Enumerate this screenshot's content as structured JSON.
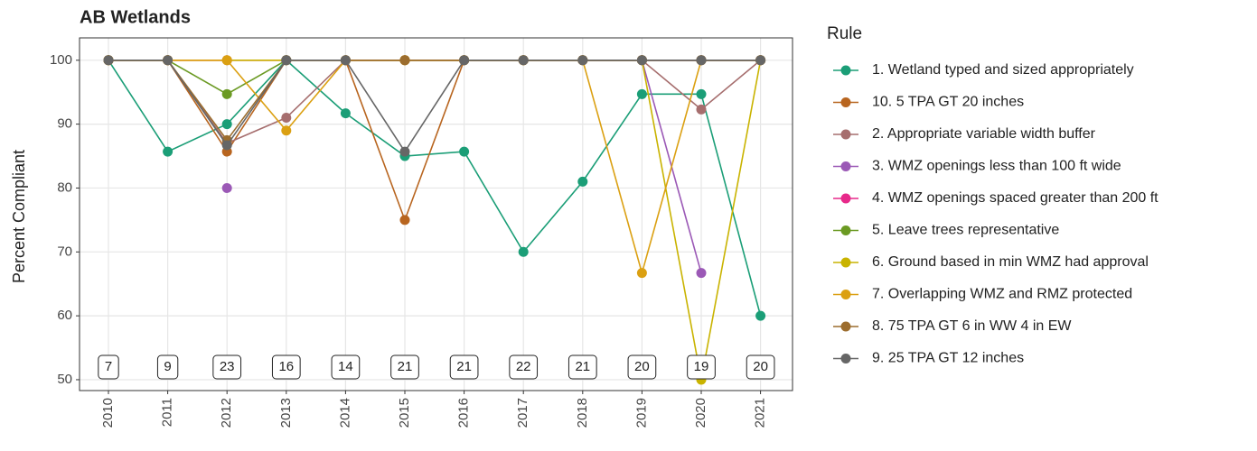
{
  "chart_data": {
    "type": "line",
    "title": "AB Wetlands",
    "y_label": "Percent Compliant",
    "legend_title": "Rule",
    "categories": [
      "2010",
      "2011",
      "2012",
      "2013",
      "2014",
      "2015",
      "2016",
      "2017",
      "2018",
      "2019",
      "2020",
      "2021"
    ],
    "ylim": [
      48.3,
      103.5
    ],
    "yticks": [
      50,
      60,
      70,
      80,
      90,
      100
    ],
    "grid": true,
    "legend": "right",
    "sample_sizes": [
      "7",
      "9",
      "23",
      "16",
      "14",
      "21",
      "21",
      "22",
      "21",
      "20",
      "19",
      "20"
    ],
    "series": [
      {
        "name": "1. Wetland typed and sized appropriately",
        "color": "#1b9e77",
        "values": [
          100,
          85.7,
          90,
          100,
          91.7,
          85,
          85.7,
          70,
          81,
          94.7,
          94.7,
          60
        ]
      },
      {
        "name": "10. 5 TPA GT 20 inches",
        "color": "#b8651f",
        "values": [
          100,
          100,
          85.7,
          100,
          100,
          75,
          100,
          100,
          100,
          100,
          100,
          100
        ]
      },
      {
        "name": "2. Appropriate variable width buffer",
        "color": "#a66e6e",
        "values": [
          100,
          100,
          87,
          91,
          100,
          100,
          100,
          100,
          100,
          100,
          92.3,
          100
        ]
      },
      {
        "name": "3. WMZ openings less than 100 ft wide",
        "color": "#9b59b6",
        "values": [
          null,
          null,
          80,
          null,
          null,
          null,
          null,
          null,
          null,
          100,
          66.7,
          null
        ]
      },
      {
        "name": "4. WMZ openings spaced greater than 200 ft",
        "color": "#e7298a",
        "values": [
          100,
          100,
          100,
          100,
          100,
          100,
          100,
          100,
          100,
          100,
          100,
          100
        ]
      },
      {
        "name": "5. Leave trees representative",
        "color": "#6b9a23",
        "values": [
          100,
          100,
          94.7,
          100,
          100,
          100,
          100,
          100,
          100,
          100,
          100,
          100
        ]
      },
      {
        "name": "6. Ground based in min WMZ had approval",
        "color": "#c9b300",
        "values": [
          100,
          100,
          100,
          100,
          100,
          100,
          100,
          100,
          100,
          100,
          50,
          100
        ]
      },
      {
        "name": "7. Overlapping WMZ and RMZ protected",
        "color": "#dba012",
        "values": [
          100,
          100,
          100,
          89,
          100,
          100,
          100,
          100,
          100,
          66.7,
          100,
          100
        ]
      },
      {
        "name": "8. 75 TPA GT 6 in WW 4 in EW",
        "color": "#9c6d2e",
        "values": [
          100,
          100,
          87.5,
          100,
          100,
          100,
          100,
          100,
          100,
          100,
          100,
          100
        ]
      },
      {
        "name": "9. 25 TPA GT 12 inches",
        "color": "#666666",
        "values": [
          100,
          100,
          86.7,
          100,
          100,
          85.7,
          100,
          100,
          100,
          100,
          100,
          100
        ]
      }
    ]
  }
}
